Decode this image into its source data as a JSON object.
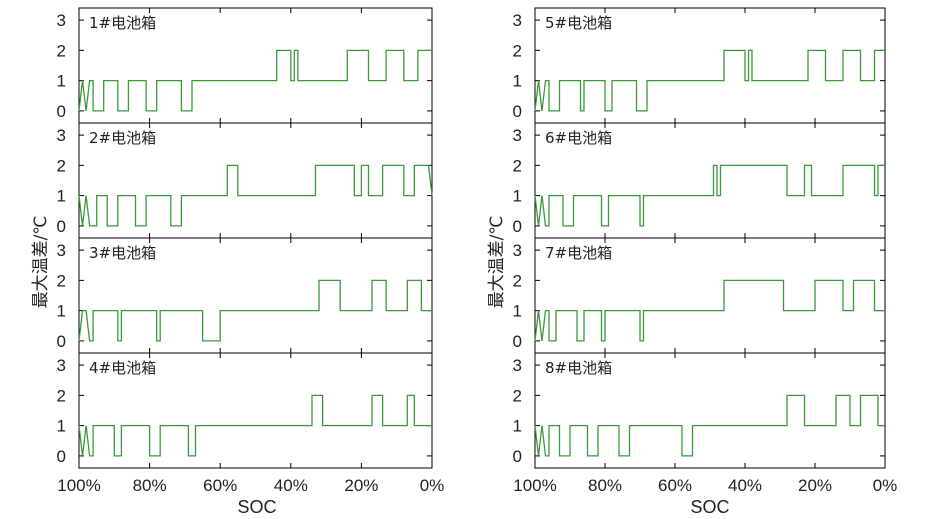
{
  "chart_data": {
    "type": "line",
    "ylabel": "最大温差/℃",
    "xlabel": "SOC",
    "x_unit": "SOC %",
    "xlim": [
      100,
      0
    ],
    "ylim": [
      -0.4,
      3.4
    ],
    "x_ticks": [
      100,
      80,
      60,
      40,
      20,
      0
    ],
    "x_tick_labels": [
      "100%",
      "80%",
      "60%",
      "40%",
      "20%",
      "0%"
    ],
    "y_ticks": [
      0,
      1,
      2,
      3
    ],
    "y_tick_labels": [
      "0",
      "1",
      "2",
      "3"
    ],
    "color": "#3a9a3a",
    "series": [
      {
        "name": "1#电池箱",
        "points": [
          [
            100,
            0
          ],
          [
            99,
            1
          ],
          [
            98,
            0
          ],
          [
            97,
            1
          ],
          [
            96,
            1
          ],
          [
            96,
            0
          ],
          [
            93,
            0
          ],
          [
            93,
            1
          ],
          [
            89,
            1
          ],
          [
            89,
            0
          ],
          [
            86,
            0
          ],
          [
            86,
            1
          ],
          [
            81,
            1
          ],
          [
            81,
            0
          ],
          [
            78,
            0
          ],
          [
            78,
            1
          ],
          [
            71,
            1
          ],
          [
            71,
            0
          ],
          [
            68,
            0
          ],
          [
            68,
            1
          ],
          [
            44,
            1
          ],
          [
            44,
            2
          ],
          [
            40,
            2
          ],
          [
            40,
            1
          ],
          [
            39,
            1
          ],
          [
            39,
            2
          ],
          [
            38,
            2
          ],
          [
            38,
            1
          ],
          [
            24,
            1
          ],
          [
            24,
            2
          ],
          [
            18,
            2
          ],
          [
            18,
            1
          ],
          [
            13,
            1
          ],
          [
            13,
            2
          ],
          [
            8,
            2
          ],
          [
            8,
            1
          ],
          [
            4,
            1
          ],
          [
            4,
            2
          ],
          [
            0,
            2
          ]
        ]
      },
      {
        "name": "2#电池箱",
        "points": [
          [
            100,
            1
          ],
          [
            99,
            0
          ],
          [
            98,
            1
          ],
          [
            97,
            0
          ],
          [
            95,
            0
          ],
          [
            95,
            1
          ],
          [
            92,
            1
          ],
          [
            92,
            0
          ],
          [
            89,
            0
          ],
          [
            89,
            1
          ],
          [
            84,
            1
          ],
          [
            84,
            0
          ],
          [
            81,
            0
          ],
          [
            81,
            1
          ],
          [
            74,
            1
          ],
          [
            74,
            0
          ],
          [
            71,
            0
          ],
          [
            71,
            1
          ],
          [
            58,
            1
          ],
          [
            58,
            2
          ],
          [
            55,
            2
          ],
          [
            55,
            1
          ],
          [
            33,
            1
          ],
          [
            33,
            2
          ],
          [
            22,
            2
          ],
          [
            22,
            1
          ],
          [
            20,
            1
          ],
          [
            20,
            2
          ],
          [
            18,
            2
          ],
          [
            18,
            1
          ],
          [
            14,
            1
          ],
          [
            14,
            2
          ],
          [
            8,
            2
          ],
          [
            8,
            1
          ],
          [
            5,
            1
          ],
          [
            5,
            2
          ],
          [
            1,
            2
          ],
          [
            0,
            1
          ]
        ]
      },
      {
        "name": "3#电池箱",
        "points": [
          [
            100,
            0
          ],
          [
            99,
            1
          ],
          [
            98,
            1
          ],
          [
            97,
            0
          ],
          [
            96,
            0
          ],
          [
            96,
            1
          ],
          [
            89,
            1
          ],
          [
            89,
            0
          ],
          [
            88,
            0
          ],
          [
            88,
            1
          ],
          [
            78,
            1
          ],
          [
            78,
            0
          ],
          [
            77,
            0
          ],
          [
            77,
            1
          ],
          [
            65,
            1
          ],
          [
            65,
            0
          ],
          [
            60,
            0
          ],
          [
            60,
            1
          ],
          [
            32,
            1
          ],
          [
            32,
            2
          ],
          [
            26,
            2
          ],
          [
            26,
            1
          ],
          [
            17,
            1
          ],
          [
            17,
            2
          ],
          [
            13,
            2
          ],
          [
            13,
            1
          ],
          [
            7,
            1
          ],
          [
            7,
            2
          ],
          [
            3,
            2
          ],
          [
            3,
            1
          ],
          [
            0,
            1
          ]
        ]
      },
      {
        "name": "4#电池箱",
        "points": [
          [
            100,
            1
          ],
          [
            99,
            0
          ],
          [
            98,
            1
          ],
          [
            97,
            0
          ],
          [
            96,
            0
          ],
          [
            96,
            1
          ],
          [
            90,
            1
          ],
          [
            90,
            0
          ],
          [
            88,
            0
          ],
          [
            88,
            1
          ],
          [
            80,
            1
          ],
          [
            80,
            0
          ],
          [
            77,
            0
          ],
          [
            77,
            1
          ],
          [
            69,
            1
          ],
          [
            69,
            0
          ],
          [
            67,
            0
          ],
          [
            67,
            1
          ],
          [
            34,
            1
          ],
          [
            34,
            2
          ],
          [
            31,
            2
          ],
          [
            31,
            1
          ],
          [
            17,
            1
          ],
          [
            17,
            2
          ],
          [
            14,
            2
          ],
          [
            14,
            1
          ],
          [
            7,
            1
          ],
          [
            7,
            2
          ],
          [
            5,
            2
          ],
          [
            5,
            1
          ],
          [
            0,
            1
          ]
        ]
      },
      {
        "name": "5#电池箱",
        "points": [
          [
            100,
            0
          ],
          [
            99,
            1
          ],
          [
            98,
            0
          ],
          [
            97,
            1
          ],
          [
            96,
            1
          ],
          [
            96,
            0
          ],
          [
            93,
            0
          ],
          [
            93,
            1
          ],
          [
            87,
            1
          ],
          [
            87,
            0
          ],
          [
            86,
            0
          ],
          [
            86,
            1
          ],
          [
            80,
            1
          ],
          [
            80,
            0
          ],
          [
            78,
            0
          ],
          [
            78,
            1
          ],
          [
            71,
            1
          ],
          [
            71,
            0
          ],
          [
            68,
            0
          ],
          [
            68,
            1
          ],
          [
            46,
            1
          ],
          [
            46,
            2
          ],
          [
            40,
            2
          ],
          [
            40,
            1
          ],
          [
            39,
            1
          ],
          [
            39,
            2
          ],
          [
            38,
            2
          ],
          [
            38,
            1
          ],
          [
            22,
            1
          ],
          [
            22,
            2
          ],
          [
            17,
            2
          ],
          [
            17,
            1
          ],
          [
            12,
            1
          ],
          [
            12,
            2
          ],
          [
            7,
            2
          ],
          [
            7,
            1
          ],
          [
            3,
            1
          ],
          [
            3,
            2
          ],
          [
            0,
            2
          ]
        ]
      },
      {
        "name": "6#电池箱",
        "points": [
          [
            100,
            1
          ],
          [
            99,
            0
          ],
          [
            98,
            1
          ],
          [
            97,
            0
          ],
          [
            96,
            0
          ],
          [
            96,
            1
          ],
          [
            92,
            1
          ],
          [
            92,
            0
          ],
          [
            89,
            0
          ],
          [
            89,
            1
          ],
          [
            81,
            1
          ],
          [
            81,
            0
          ],
          [
            79,
            0
          ],
          [
            79,
            1
          ],
          [
            70,
            1
          ],
          [
            70,
            0
          ],
          [
            69,
            0
          ],
          [
            69,
            1
          ],
          [
            49,
            1
          ],
          [
            49,
            2
          ],
          [
            48,
            2
          ],
          [
            48,
            1
          ],
          [
            47,
            1
          ],
          [
            47,
            2
          ],
          [
            28,
            2
          ],
          [
            28,
            1
          ],
          [
            23,
            1
          ],
          [
            23,
            2
          ],
          [
            21,
            2
          ],
          [
            21,
            1
          ],
          [
            12,
            1
          ],
          [
            12,
            2
          ],
          [
            3,
            2
          ],
          [
            3,
            1
          ],
          [
            2,
            1
          ],
          [
            2,
            2
          ],
          [
            0,
            2
          ]
        ]
      },
      {
        "name": "7#电池箱",
        "points": [
          [
            100,
            0
          ],
          [
            99,
            1
          ],
          [
            98,
            0
          ],
          [
            97,
            1
          ],
          [
            96,
            1
          ],
          [
            96,
            0
          ],
          [
            94,
            0
          ],
          [
            94,
            1
          ],
          [
            88,
            1
          ],
          [
            88,
            0
          ],
          [
            86,
            0
          ],
          [
            86,
            1
          ],
          [
            81,
            1
          ],
          [
            81,
            0
          ],
          [
            80,
            0
          ],
          [
            80,
            1
          ],
          [
            70,
            1
          ],
          [
            70,
            0
          ],
          [
            69,
            0
          ],
          [
            69,
            1
          ],
          [
            46,
            1
          ],
          [
            46,
            2
          ],
          [
            29,
            2
          ],
          [
            29,
            1
          ],
          [
            20,
            1
          ],
          [
            20,
            2
          ],
          [
            12,
            2
          ],
          [
            12,
            1
          ],
          [
            9,
            1
          ],
          [
            9,
            2
          ],
          [
            3,
            2
          ],
          [
            3,
            1
          ],
          [
            0,
            1
          ]
        ]
      },
      {
        "name": "8#电池箱",
        "points": [
          [
            100,
            1
          ],
          [
            99,
            0
          ],
          [
            98,
            1
          ],
          [
            97,
            0
          ],
          [
            96,
            0
          ],
          [
            96,
            1
          ],
          [
            93,
            1
          ],
          [
            93,
            0
          ],
          [
            90,
            0
          ],
          [
            90,
            1
          ],
          [
            85,
            1
          ],
          [
            85,
            0
          ],
          [
            82,
            0
          ],
          [
            82,
            1
          ],
          [
            76,
            1
          ],
          [
            76,
            0
          ],
          [
            73,
            0
          ],
          [
            73,
            1
          ],
          [
            58,
            1
          ],
          [
            58,
            0
          ],
          [
            55,
            0
          ],
          [
            55,
            1
          ],
          [
            28,
            1
          ],
          [
            28,
            2
          ],
          [
            23,
            2
          ],
          [
            23,
            1
          ],
          [
            14,
            1
          ],
          [
            14,
            2
          ],
          [
            10,
            2
          ],
          [
            10,
            1
          ],
          [
            7,
            1
          ],
          [
            7,
            2
          ],
          [
            2,
            2
          ],
          [
            2,
            1
          ],
          [
            0,
            1
          ]
        ]
      }
    ]
  }
}
